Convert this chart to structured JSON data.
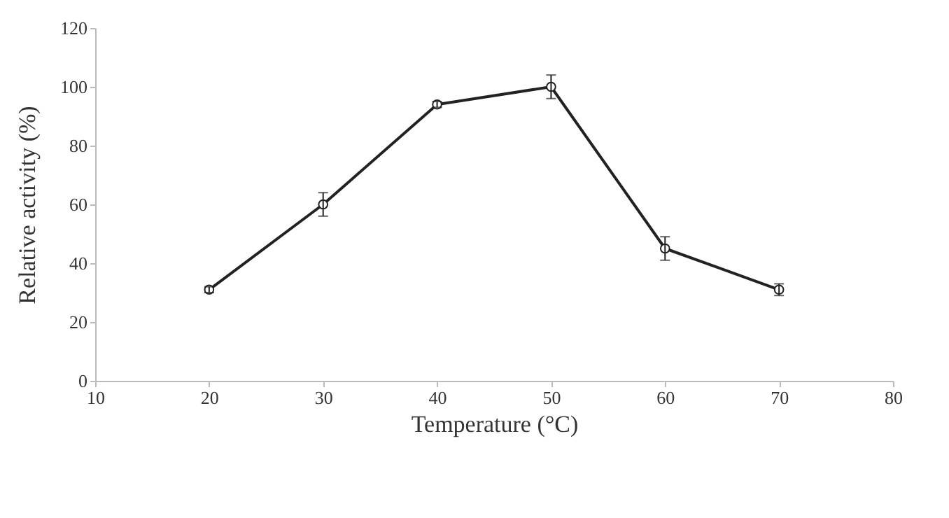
{
  "chart_data": {
    "type": "line",
    "xlabel": "Temperature (°C)",
    "ylabel": "Relative activity (%)",
    "x": [
      20,
      30,
      40,
      50,
      60,
      70
    ],
    "series": [
      {
        "color": "#222222",
        "values": [
          31,
          60,
          94,
          100,
          45,
          31
        ],
        "errors": [
          1,
          4,
          1,
          4,
          4,
          2
        ]
      }
    ],
    "xlim": [
      10,
      80
    ],
    "xticks": [
      10,
      20,
      30,
      40,
      50,
      60,
      70,
      80
    ],
    "ylim": [
      0,
      120
    ],
    "yticks": [
      0,
      20,
      40,
      60,
      80,
      100,
      120
    ],
    "grid": false,
    "marker": "circle",
    "line_style": "solid"
  }
}
